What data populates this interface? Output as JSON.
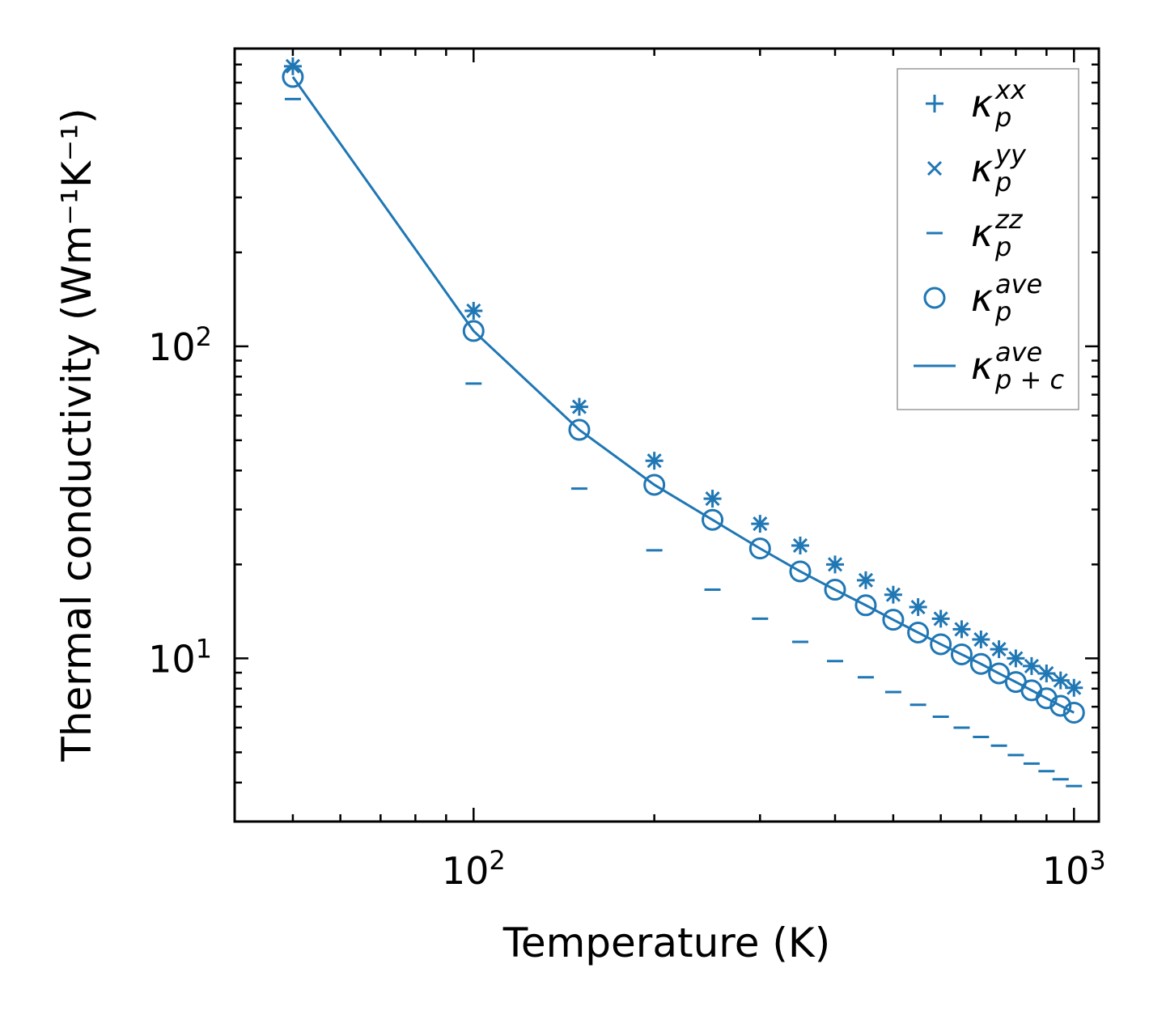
{
  "chart_data": {
    "type": "scatter",
    "xscale": "log",
    "yscale": "log",
    "xlabel": "Temperature (K)",
    "ylabel": "Thermal conductivity (Wm⁻¹K⁻¹)",
    "xlim": [
      40,
      1100
    ],
    "ylim": [
      3.0,
      900
    ],
    "x_ticks": [
      {
        "value": 100,
        "base": "10",
        "exp": "2"
      },
      {
        "value": 1000,
        "base": "10",
        "exp": "3"
      }
    ],
    "y_ticks": [
      {
        "value": 10,
        "base": "10",
        "exp": "1"
      },
      {
        "value": 100,
        "base": "10",
        "exp": "2"
      }
    ],
    "color": "#1f77b4",
    "x": [
      50,
      100,
      150,
      200,
      250,
      300,
      350,
      400,
      450,
      500,
      550,
      600,
      650,
      700,
      750,
      800,
      850,
      900,
      950,
      1000
    ],
    "series": [
      {
        "name": "kappa_p_xx",
        "label_main": "κ",
        "label_sub": "p",
        "label_sup": "xx",
        "marker": "plus",
        "values": [
          790,
          130,
          64,
          43,
          32.5,
          27,
          23,
          20,
          17.8,
          16,
          14.6,
          13.4,
          12.4,
          11.5,
          10.7,
          10,
          9.45,
          8.95,
          8.5,
          8.05
        ]
      },
      {
        "name": "kappa_p_yy",
        "label_main": "κ",
        "label_sub": "p",
        "label_sup": "yy",
        "marker": "x",
        "values": [
          790,
          130,
          64,
          43,
          32.5,
          27,
          23,
          20,
          17.8,
          16,
          14.6,
          13.4,
          12.4,
          11.5,
          10.7,
          10,
          9.45,
          8.95,
          8.5,
          8.05
        ]
      },
      {
        "name": "kappa_p_zz",
        "label_main": "κ",
        "label_sub": "p",
        "label_sup": "zz",
        "marker": "hline",
        "values": [
          620,
          76,
          35,
          22.2,
          16.6,
          13.4,
          11.3,
          9.8,
          8.7,
          7.8,
          7.1,
          6.5,
          6.0,
          5.6,
          5.25,
          4.9,
          4.6,
          4.35,
          4.1,
          3.9
        ]
      },
      {
        "name": "kappa_p_ave",
        "label_main": "κ",
        "label_sub": "p",
        "label_sup": "ave",
        "marker": "circle",
        "values": [
          730,
          112,
          54,
          36,
          27.8,
          22.5,
          19,
          16.6,
          14.8,
          13.3,
          12.1,
          11.1,
          10.3,
          9.6,
          8.95,
          8.4,
          7.9,
          7.45,
          7.05,
          6.7
        ]
      },
      {
        "name": "kappa_p_plus_c_ave",
        "label_main": "κ",
        "label_sub": "p + c",
        "label_sup": "ave",
        "marker": "line",
        "values": [
          730,
          112,
          54,
          36,
          27.8,
          22.5,
          19,
          16.6,
          14.8,
          13.3,
          12.1,
          11.1,
          10.3,
          9.6,
          8.95,
          8.4,
          7.9,
          7.45,
          7.05,
          6.7
        ]
      }
    ],
    "legend": {
      "placement": "top-right"
    }
  }
}
